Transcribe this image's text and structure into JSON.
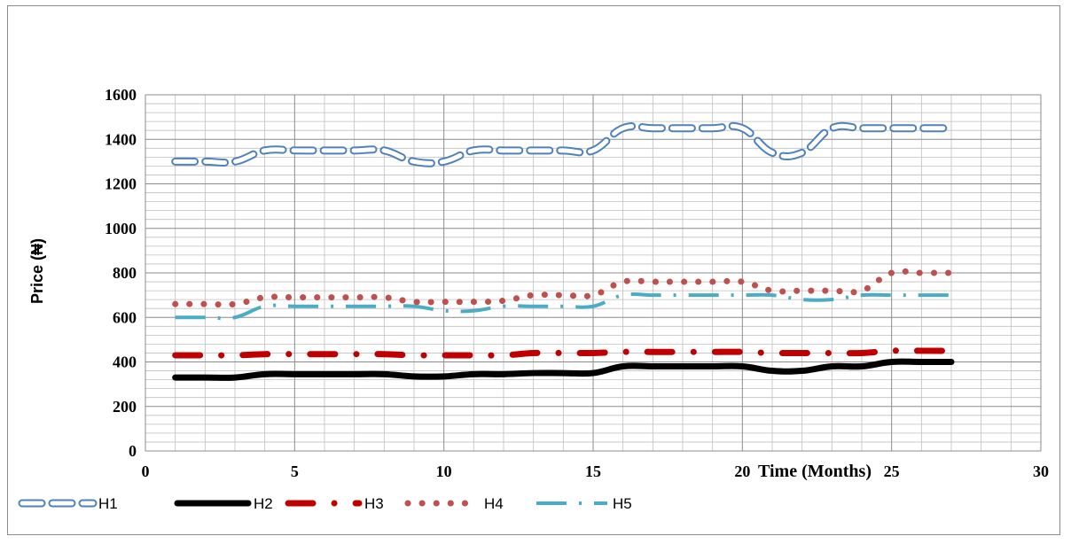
{
  "chart_data": {
    "type": "line",
    "xlabel": "Time (Months)",
    "ylabel": "Price (₦)",
    "xlim": [
      0,
      30
    ],
    "ylim": [
      0,
      1600
    ],
    "x_ticks": [
      "0",
      "5",
      "10",
      "15",
      "20",
      "25",
      "30"
    ],
    "y_ticks": [
      "0",
      "200",
      "400",
      "600",
      "800",
      "1000",
      "1200",
      "1400",
      "1600"
    ],
    "grid": true,
    "legend_position": "bottom-left",
    "x": [
      1,
      2,
      3,
      4,
      5,
      6,
      7,
      8,
      9,
      10,
      11,
      12,
      13,
      14,
      15,
      16,
      17,
      18,
      19,
      20,
      21,
      22,
      23,
      24,
      25,
      26,
      27
    ],
    "series": [
      {
        "name": "H1",
        "color": "#4F81BD",
        "style": "open-dash",
        "values": [
          1300,
          1300,
          1300,
          1350,
          1350,
          1350,
          1350,
          1350,
          1300,
          1300,
          1350,
          1350,
          1350,
          1350,
          1350,
          1450,
          1450,
          1450,
          1450,
          1450,
          1340,
          1340,
          1450,
          1450,
          1450,
          1450,
          1450
        ]
      },
      {
        "name": "H2",
        "color": "#000000",
        "style": "solid-thick",
        "values": [
          330,
          330,
          330,
          345,
          345,
          345,
          345,
          345,
          335,
          335,
          345,
          345,
          350,
          350,
          350,
          380,
          380,
          380,
          380,
          380,
          360,
          360,
          380,
          380,
          400,
          400,
          400
        ]
      },
      {
        "name": "H3",
        "color": "#C00000",
        "style": "dash-dot",
        "values": [
          430,
          430,
          430,
          435,
          435,
          435,
          435,
          435,
          430,
          430,
          430,
          430,
          440,
          440,
          440,
          445,
          445,
          445,
          445,
          445,
          440,
          440,
          440,
          440,
          450,
          450,
          450
        ]
      },
      {
        "name": "H4",
        "color": "#C0504D",
        "style": "dots",
        "values": [
          660,
          660,
          660,
          690,
          690,
          690,
          690,
          690,
          670,
          670,
          670,
          675,
          700,
          700,
          700,
          760,
          760,
          760,
          760,
          760,
          720,
          720,
          720,
          720,
          800,
          800,
          800
        ]
      },
      {
        "name": "H5",
        "color": "#4BACC6",
        "style": "long-dash-dot",
        "values": [
          600,
          600,
          600,
          650,
          650,
          650,
          650,
          650,
          650,
          630,
          630,
          650,
          650,
          650,
          650,
          700,
          700,
          700,
          700,
          700,
          700,
          680,
          680,
          700,
          700,
          700,
          700
        ]
      }
    ]
  }
}
